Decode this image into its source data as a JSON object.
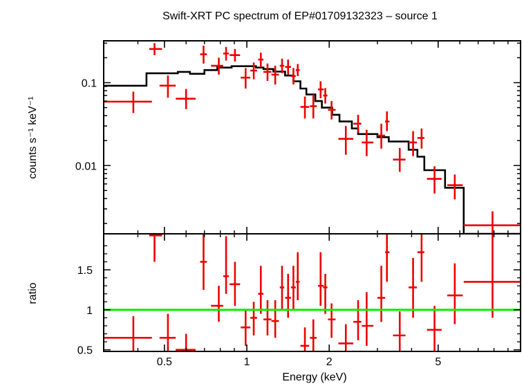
{
  "chart_data": {
    "type": "scatter",
    "title": "Swift-XRT PC spectrum of EP#01709132323 – source 1",
    "xlabel": "Energy (keV)",
    "x_scale": "log",
    "xlim": [
      0.3,
      10
    ],
    "x_ticks": [
      {
        "value": 0.5,
        "label": "0.5"
      },
      {
        "value": 1,
        "label": "1"
      },
      {
        "value": 2,
        "label": "2"
      },
      {
        "value": 5,
        "label": "5"
      }
    ],
    "colors": {
      "data": "#ee0000",
      "model": "#000000",
      "ratio_line": "#00ee00"
    },
    "panels": [
      {
        "id": "spectrum",
        "ylabel": "counts s⁻¹ keV⁻¹",
        "y_scale": "log",
        "ylim": [
          0.0015,
          0.32
        ],
        "y_ticks": [
          {
            "value": 0.01,
            "label": "0.01"
          },
          {
            "value": 0.1,
            "label": "0.1"
          }
        ],
        "data": [
          {
            "x": 0.385,
            "xlo": 0.3,
            "xhi": 0.45,
            "y": 0.059,
            "ylo": 0.043,
            "yhi": 0.078
          },
          {
            "x": 0.46,
            "xlo": 0.44,
            "xhi": 0.49,
            "y": 0.255,
            "ylo": 0.215,
            "yhi": 0.3
          },
          {
            "x": 0.515,
            "xlo": 0.48,
            "xhi": 0.55,
            "y": 0.092,
            "ylo": 0.066,
            "yhi": 0.122
          },
          {
            "x": 0.6,
            "xlo": 0.55,
            "xhi": 0.65,
            "y": 0.064,
            "ylo": 0.048,
            "yhi": 0.084
          },
          {
            "x": 0.695,
            "xlo": 0.675,
            "xhi": 0.715,
            "y": 0.22,
            "ylo": 0.17,
            "yhi": 0.28
          },
          {
            "x": 0.79,
            "xlo": 0.74,
            "xhi": 0.82,
            "y": 0.16,
            "ylo": 0.125,
            "yhi": 0.2
          },
          {
            "x": 0.84,
            "xlo": 0.82,
            "xhi": 0.86,
            "y": 0.225,
            "ylo": 0.185,
            "yhi": 0.27
          },
          {
            "x": 0.905,
            "xlo": 0.865,
            "xhi": 0.945,
            "y": 0.215,
            "ylo": 0.18,
            "yhi": 0.255
          },
          {
            "x": 0.99,
            "xlo": 0.95,
            "xhi": 1.03,
            "y": 0.115,
            "ylo": 0.085,
            "yhi": 0.15
          },
          {
            "x": 1.06,
            "xlo": 1.03,
            "xhi": 1.09,
            "y": 0.14,
            "ylo": 0.11,
            "yhi": 0.175
          },
          {
            "x": 1.125,
            "xlo": 1.1,
            "xhi": 1.15,
            "y": 0.19,
            "ylo": 0.155,
            "yhi": 0.23
          },
          {
            "x": 1.19,
            "xlo": 1.15,
            "xhi": 1.23,
            "y": 0.135,
            "ylo": 0.105,
            "yhi": 0.17
          },
          {
            "x": 1.27,
            "xlo": 1.23,
            "xhi": 1.31,
            "y": 0.125,
            "ylo": 0.095,
            "yhi": 0.16
          },
          {
            "x": 1.345,
            "xlo": 1.32,
            "xhi": 1.37,
            "y": 0.16,
            "ylo": 0.13,
            "yhi": 0.195
          },
          {
            "x": 1.415,
            "xlo": 1.38,
            "xhi": 1.45,
            "y": 0.155,
            "ylo": 0.125,
            "yhi": 0.19
          },
          {
            "x": 1.48,
            "xlo": 1.45,
            "xhi": 1.51,
            "y": 0.12,
            "ylo": 0.095,
            "yhi": 0.15
          },
          {
            "x": 1.535,
            "xlo": 1.51,
            "xhi": 1.56,
            "y": 0.142,
            "ylo": 0.12,
            "yhi": 0.168
          },
          {
            "x": 1.63,
            "xlo": 1.57,
            "xhi": 1.69,
            "y": 0.051,
            "ylo": 0.037,
            "yhi": 0.068
          },
          {
            "x": 1.75,
            "xlo": 1.7,
            "xhi": 1.8,
            "y": 0.052,
            "ylo": 0.037,
            "yhi": 0.072
          },
          {
            "x": 1.86,
            "xlo": 1.82,
            "xhi": 1.91,
            "y": 0.083,
            "ylo": 0.065,
            "yhi": 0.104
          },
          {
            "x": 1.935,
            "xlo": 1.9,
            "xhi": 1.97,
            "y": 0.07,
            "ylo": 0.056,
            "yhi": 0.086
          },
          {
            "x": 2.04,
            "xlo": 1.98,
            "xhi": 2.11,
            "y": 0.047,
            "ylo": 0.036,
            "yhi": 0.06
          },
          {
            "x": 2.3,
            "xlo": 2.16,
            "xhi": 2.45,
            "y": 0.021,
            "ylo": 0.0135,
            "yhi": 0.03
          },
          {
            "x": 2.55,
            "xlo": 2.45,
            "xhi": 2.62,
            "y": 0.032,
            "ylo": 0.025,
            "yhi": 0.041
          },
          {
            "x": 2.74,
            "xlo": 2.63,
            "xhi": 2.9,
            "y": 0.019,
            "ylo": 0.013,
            "yhi": 0.027
          },
          {
            "x": 3.1,
            "xlo": 3.0,
            "xhi": 3.2,
            "y": 0.023,
            "ylo": 0.016,
            "yhi": 0.032
          },
          {
            "x": 3.25,
            "xlo": 3.2,
            "xhi": 3.32,
            "y": 0.034,
            "ylo": 0.026,
            "yhi": 0.045
          },
          {
            "x": 3.62,
            "xlo": 3.42,
            "xhi": 3.8,
            "y": 0.0118,
            "ylo": 0.0084,
            "yhi": 0.0163
          },
          {
            "x": 4.05,
            "xlo": 3.9,
            "xhi": 4.18,
            "y": 0.019,
            "ylo": 0.013,
            "yhi": 0.026
          },
          {
            "x": 4.35,
            "xlo": 4.2,
            "xhi": 4.45,
            "y": 0.0215,
            "ylo": 0.016,
            "yhi": 0.028
          },
          {
            "x": 4.85,
            "xlo": 4.55,
            "xhi": 5.15,
            "y": 0.0069,
            "ylo": 0.0046,
            "yhi": 0.0098
          },
          {
            "x": 5.75,
            "xlo": 5.4,
            "xhi": 6.15,
            "y": 0.0058,
            "ylo": 0.0039,
            "yhi": 0.0078
          },
          {
            "x": 7.9,
            "xlo": 6.2,
            "xhi": 10.0,
            "y": 0.0019,
            "ylo": 0.0013,
            "yhi": 0.0028
          }
        ],
        "model": [
          [
            0.3,
            0.092
          ],
          [
            0.43,
            0.092
          ],
          [
            0.43,
            0.13
          ],
          [
            0.56,
            0.13
          ],
          [
            0.56,
            0.135
          ],
          [
            0.62,
            0.135
          ],
          [
            0.62,
            0.128
          ],
          [
            0.7,
            0.128
          ],
          [
            0.7,
            0.142
          ],
          [
            0.78,
            0.142
          ],
          [
            0.78,
            0.152
          ],
          [
            0.88,
            0.152
          ],
          [
            0.88,
            0.158
          ],
          [
            1.08,
            0.158
          ],
          [
            1.08,
            0.152
          ],
          [
            1.15,
            0.152
          ],
          [
            1.15,
            0.146
          ],
          [
            1.25,
            0.146
          ],
          [
            1.25,
            0.136
          ],
          [
            1.38,
            0.136
          ],
          [
            1.38,
            0.122
          ],
          [
            1.48,
            0.122
          ],
          [
            1.48,
            0.104
          ],
          [
            1.57,
            0.104
          ],
          [
            1.57,
            0.085
          ],
          [
            1.65,
            0.085
          ],
          [
            1.65,
            0.072
          ],
          [
            1.78,
            0.072
          ],
          [
            1.78,
            0.06
          ],
          [
            1.88,
            0.06
          ],
          [
            1.88,
            0.05
          ],
          [
            2.05,
            0.05
          ],
          [
            2.05,
            0.041
          ],
          [
            2.18,
            0.041
          ],
          [
            2.18,
            0.034
          ],
          [
            2.42,
            0.034
          ],
          [
            2.42,
            0.028
          ],
          [
            2.55,
            0.028
          ],
          [
            2.55,
            0.024
          ],
          [
            3.0,
            0.024
          ],
          [
            3.0,
            0.022
          ],
          [
            3.3,
            0.022
          ],
          [
            3.3,
            0.0195
          ],
          [
            3.9,
            0.0195
          ],
          [
            3.9,
            0.0155
          ],
          [
            4.2,
            0.0155
          ],
          [
            4.2,
            0.0128
          ],
          [
            4.45,
            0.0128
          ],
          [
            4.45,
            0.0088
          ],
          [
            5.3,
            0.0088
          ],
          [
            5.3,
            0.0054
          ],
          [
            6.2,
            0.0054
          ],
          [
            6.2,
            0.0015
          ],
          [
            10.0,
            0.0015
          ]
        ]
      },
      {
        "id": "ratio",
        "ylabel": "ratio",
        "y_scale": "linear",
        "ylim": [
          0.48,
          1.95
        ],
        "reference_line": 1,
        "y_ticks": [
          {
            "value": 0.5,
            "label": "0.5"
          },
          {
            "value": 1,
            "label": "1"
          },
          {
            "value": 1.5,
            "label": "1.5"
          }
        ],
        "data": [
          {
            "x": 0.385,
            "xlo": 0.3,
            "xhi": 0.45,
            "y": 0.65,
            "ylo": 0.48,
            "yhi": 0.92
          },
          {
            "x": 0.46,
            "xlo": 0.44,
            "xhi": 0.49,
            "y": 1.93,
            "ylo": 1.6,
            "yhi": 1.95
          },
          {
            "x": 0.515,
            "xlo": 0.48,
            "xhi": 0.55,
            "y": 0.65,
            "ylo": 0.48,
            "yhi": 0.95
          },
          {
            "x": 0.6,
            "xlo": 0.55,
            "xhi": 0.65,
            "y": 0.5,
            "ylo": 0.48,
            "yhi": 0.7
          },
          {
            "x": 0.695,
            "xlo": 0.675,
            "xhi": 0.715,
            "y": 1.6,
            "ylo": 1.25,
            "yhi": 1.95
          },
          {
            "x": 0.79,
            "xlo": 0.74,
            "xhi": 0.82,
            "y": 1.05,
            "ylo": 0.85,
            "yhi": 1.3
          },
          {
            "x": 0.84,
            "xlo": 0.82,
            "xhi": 0.86,
            "y": 1.42,
            "ylo": 1.2,
            "yhi": 1.92
          },
          {
            "x": 0.905,
            "xlo": 0.865,
            "xhi": 0.945,
            "y": 1.32,
            "ylo": 1.05,
            "yhi": 1.6
          },
          {
            "x": 0.99,
            "xlo": 0.95,
            "xhi": 1.03,
            "y": 0.78,
            "ylo": 0.55,
            "yhi": 1.0
          },
          {
            "x": 1.06,
            "xlo": 1.03,
            "xhi": 1.09,
            "y": 0.9,
            "ylo": 0.68,
            "yhi": 1.1
          },
          {
            "x": 1.125,
            "xlo": 1.1,
            "xhi": 1.15,
            "y": 1.2,
            "ylo": 0.95,
            "yhi": 1.55
          },
          {
            "x": 1.19,
            "xlo": 1.15,
            "xhi": 1.23,
            "y": 0.88,
            "ylo": 0.68,
            "yhi": 1.12
          },
          {
            "x": 1.27,
            "xlo": 1.23,
            "xhi": 1.31,
            "y": 0.86,
            "ylo": 0.65,
            "yhi": 1.12
          },
          {
            "x": 1.345,
            "xlo": 1.32,
            "xhi": 1.37,
            "y": 1.28,
            "ylo": 1.0,
            "yhi": 1.55
          },
          {
            "x": 1.415,
            "xlo": 1.38,
            "xhi": 1.45,
            "y": 1.15,
            "ylo": 0.9,
            "yhi": 1.45
          },
          {
            "x": 1.48,
            "xlo": 1.45,
            "xhi": 1.51,
            "y": 1.28,
            "ylo": 1.0,
            "yhi": 1.55
          },
          {
            "x": 1.535,
            "xlo": 1.51,
            "xhi": 1.56,
            "y": 1.35,
            "ylo": 1.12,
            "yhi": 1.72
          },
          {
            "x": 1.63,
            "xlo": 1.57,
            "xhi": 1.69,
            "y": 0.55,
            "ylo": 0.48,
            "yhi": 0.78
          },
          {
            "x": 1.75,
            "xlo": 1.7,
            "xhi": 1.8,
            "y": 0.65,
            "ylo": 0.48,
            "yhi": 0.88
          },
          {
            "x": 1.86,
            "xlo": 1.82,
            "xhi": 1.91,
            "y": 1.3,
            "ylo": 1.05,
            "yhi": 1.72
          },
          {
            "x": 1.935,
            "xlo": 1.9,
            "xhi": 1.97,
            "y": 1.28,
            "ylo": 0.95,
            "yhi": 1.45
          },
          {
            "x": 2.04,
            "xlo": 1.98,
            "xhi": 2.11,
            "y": 0.88,
            "ylo": 0.65,
            "yhi": 1.08
          },
          {
            "x": 2.3,
            "xlo": 2.16,
            "xhi": 2.45,
            "y": 0.58,
            "ylo": 0.48,
            "yhi": 0.82
          },
          {
            "x": 2.55,
            "xlo": 2.45,
            "xhi": 2.62,
            "y": 0.85,
            "ylo": 0.62,
            "yhi": 1.12
          },
          {
            "x": 2.74,
            "xlo": 2.63,
            "xhi": 2.9,
            "y": 0.8,
            "ylo": 0.55,
            "yhi": 1.22
          },
          {
            "x": 3.1,
            "xlo": 3.0,
            "xhi": 3.2,
            "y": 1.15,
            "ylo": 0.85,
            "yhi": 1.55
          },
          {
            "x": 3.25,
            "xlo": 3.2,
            "xhi": 3.32,
            "y": 1.72,
            "ylo": 1.35,
            "yhi": 1.95
          },
          {
            "x": 3.62,
            "xlo": 3.42,
            "xhi": 3.8,
            "y": 0.68,
            "ylo": 0.48,
            "yhi": 0.98
          },
          {
            "x": 4.05,
            "xlo": 3.9,
            "xhi": 4.18,
            "y": 1.28,
            "ylo": 0.9,
            "yhi": 1.65
          },
          {
            "x": 4.35,
            "xlo": 4.2,
            "xhi": 4.45,
            "y": 1.72,
            "ylo": 1.35,
            "yhi": 1.95
          },
          {
            "x": 4.85,
            "xlo": 4.55,
            "xhi": 5.15,
            "y": 0.75,
            "ylo": 0.48,
            "yhi": 1.05
          },
          {
            "x": 5.75,
            "xlo": 5.4,
            "xhi": 6.15,
            "y": 1.18,
            "ylo": 0.82,
            "yhi": 1.58
          },
          {
            "x": 7.9,
            "xlo": 6.2,
            "xhi": 10.0,
            "y": 1.35,
            "ylo": 0.9,
            "yhi": 1.95
          }
        ]
      }
    ]
  }
}
